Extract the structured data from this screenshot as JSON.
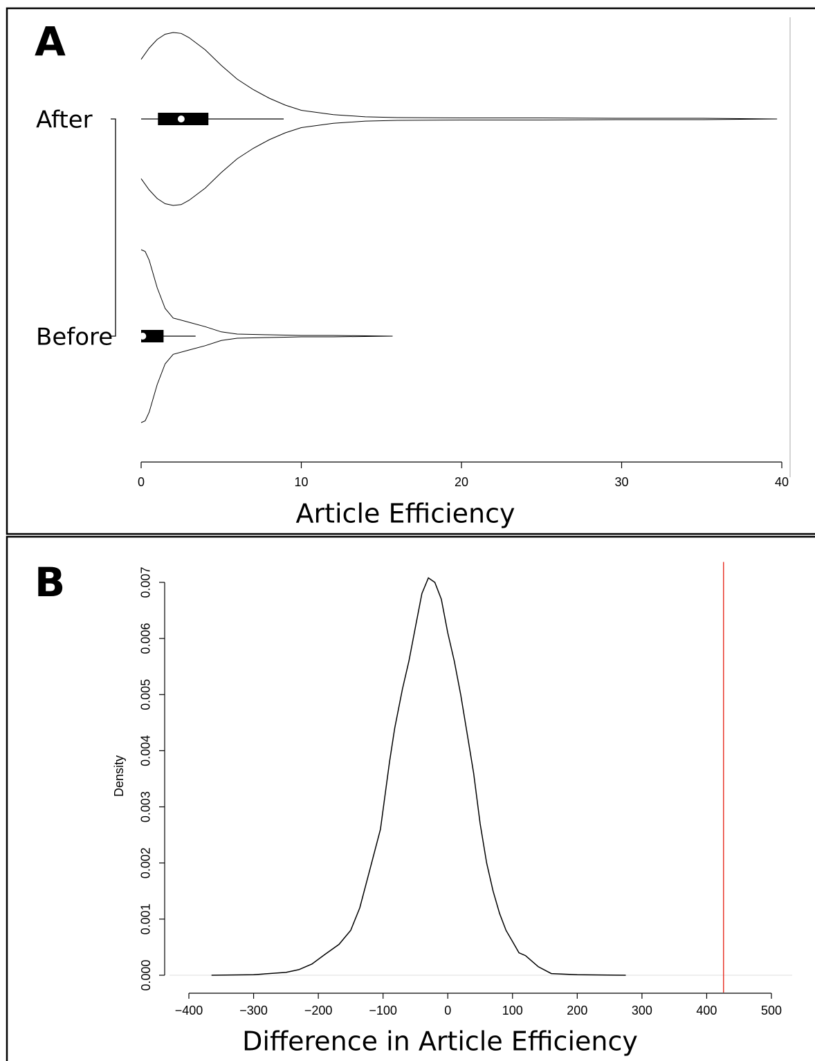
{
  "chart_data": [
    {
      "type": "violin",
      "panel": "A",
      "xlabel": "Article Efficiency",
      "xlim": [
        0,
        40
      ],
      "xticks": [
        0,
        10,
        20,
        30,
        40
      ],
      "series": [
        {
          "name": "After",
          "x": [
            0,
            0.5,
            1,
            1.5,
            2,
            2.5,
            3,
            4,
            5,
            6,
            7,
            8,
            9,
            10,
            12,
            14,
            16,
            20,
            25,
            30,
            35,
            39.7
          ],
          "density": [
            0.69,
            0.82,
            0.92,
            0.98,
            1.0,
            0.99,
            0.94,
            0.8,
            0.62,
            0.46,
            0.34,
            0.24,
            0.16,
            0.1,
            0.05,
            0.025,
            0.016,
            0.012,
            0.012,
            0.008,
            0.008,
            0
          ],
          "box": {
            "min": 0,
            "q1": 1.05,
            "median": 2.5,
            "q3": 4.2,
            "max": 8.9
          }
        },
        {
          "name": "Before",
          "x": [
            0,
            0.25,
            0.5,
            1,
            1.5,
            2,
            3,
            4,
            5,
            6,
            8,
            10,
            12,
            15.7
          ],
          "density": [
            1.0,
            0.98,
            0.88,
            0.56,
            0.32,
            0.21,
            0.16,
            0.11,
            0.05,
            0.024,
            0.016,
            0.008,
            0.008,
            0
          ],
          "box": {
            "min": 0,
            "q1": 0,
            "median": 0.1,
            "q3": 1.4,
            "max": 3.4
          }
        }
      ]
    },
    {
      "type": "line",
      "panel": "B",
      "xlabel": "Difference in Article Efficiency",
      "ylabel": "Density",
      "xlim": [
        -400,
        500
      ],
      "ylim": [
        0,
        0.0074
      ],
      "xticks": [
        {
          "value": -400,
          "label": "−400"
        },
        {
          "value": -300,
          "label": "−300"
        },
        {
          "value": -200,
          "label": "−200"
        },
        {
          "value": -100,
          "label": "−100"
        },
        0,
        100,
        200,
        300,
        400,
        500
      ],
      "yticks": [
        {
          "value": 0,
          "label": "0.000"
        },
        0.001,
        0.002,
        0.003,
        0.004,
        0.005,
        0.006,
        0.007
      ],
      "x": [
        -365,
        -300,
        -250,
        -230,
        -210,
        -190,
        -168,
        -150,
        -136,
        -120,
        -104,
        -90,
        -82,
        -70,
        -60,
        -50,
        -40,
        -30,
        -20,
        -10,
        0,
        10,
        20,
        30,
        40,
        50,
        60,
        70,
        80,
        90,
        100,
        110,
        120,
        140,
        160,
        200,
        275
      ],
      "values": [
        0,
        1e-05,
        5e-05,
        0.0001,
        0.0002,
        0.00037,
        0.00055,
        0.0008,
        0.0012,
        0.0019,
        0.0026,
        0.0038,
        0.0044,
        0.0051,
        0.0056,
        0.0062,
        0.0068,
        0.00708,
        0.007,
        0.0067,
        0.0061,
        0.0056,
        0.005,
        0.0043,
        0.0036,
        0.0027,
        0.002,
        0.0015,
        0.0011,
        0.0008,
        0.0006,
        0.0004,
        0.00035,
        0.00015,
        3e-05,
        1e-05,
        0
      ],
      "color": "#000000",
      "vline": {
        "value": 426,
        "color": "#e8382e"
      }
    }
  ]
}
